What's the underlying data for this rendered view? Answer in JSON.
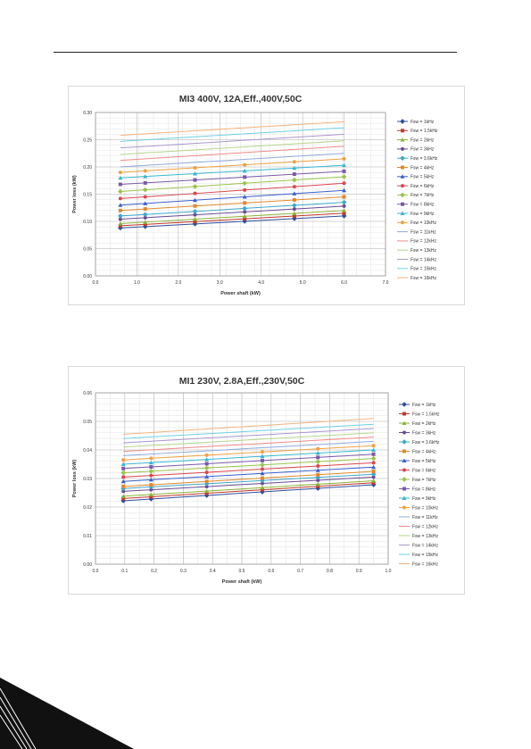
{
  "colors": {
    "series": [
      "#2f4f9f",
      "#c0392b",
      "#8db33a",
      "#6a4c93",
      "#3fa7c9",
      "#e08a2b",
      "#3a5fcd",
      "#d9464d",
      "#9ac34c",
      "#7a5aa8",
      "#38b7cf",
      "#f0a040",
      "#8faadc",
      "#f08a8a",
      "#b5d58a",
      "#a996cc",
      "#6fd0e6",
      "#f5b27a"
    ]
  },
  "chart_data": [
    {
      "type": "line",
      "title": "MI3 400V, 12A,Eff.,400V,50C",
      "xlabel": "Power shaft (kW)",
      "ylabel": "Power loss (kW)",
      "xlim": [
        0,
        7
      ],
      "ylim": [
        0,
        0.3
      ],
      "xticks": [
        "0.0",
        "1.0",
        "2.0",
        "3.0",
        "4.0",
        "5.0",
        "6.0",
        "7.0"
      ],
      "yticks": [
        "0.00",
        "0.05",
        "0.10",
        "0.15",
        "0.20",
        "0.25",
        "0.30"
      ],
      "grid": true,
      "legend": "right",
      "x": [
        0.6,
        1.2,
        2.4,
        3.6,
        4.8,
        6.0
      ],
      "series": [
        {
          "name": "Fsw = 1kHz",
          "start": 0.088,
          "end": 0.11
        },
        {
          "name": "Fsw = 1.5kHz",
          "start": 0.092,
          "end": 0.115
        },
        {
          "name": "Fsw = 2kHz",
          "start": 0.096,
          "end": 0.12
        },
        {
          "name": "Fsw = 3kHz",
          "start": 0.104,
          "end": 0.128
        },
        {
          "name": "Fsw = 3.6kHz",
          "start": 0.11,
          "end": 0.135
        },
        {
          "name": "Fsw = 4kHz",
          "start": 0.12,
          "end": 0.145
        },
        {
          "name": "Fsw = 5kHz",
          "start": 0.13,
          "end": 0.157
        },
        {
          "name": "Fsw = 6kHz",
          "start": 0.142,
          "end": 0.17
        },
        {
          "name": "Fsw = 7kHz",
          "start": 0.155,
          "end": 0.182
        },
        {
          "name": "Fsw = 8kHz",
          "start": 0.168,
          "end": 0.192
        },
        {
          "name": "Fsw = 9kHz",
          "start": 0.18,
          "end": 0.203
        },
        {
          "name": "Fsw = 10kHz",
          "start": 0.19,
          "end": 0.215
        },
        {
          "name": "Fsw = 11kHz",
          "start": 0.2,
          "end": 0.225
        },
        {
          "name": "Fsw = 12kHz",
          "start": 0.212,
          "end": 0.238
        },
        {
          "name": "Fsw = 13kHz",
          "start": 0.223,
          "end": 0.248
        },
        {
          "name": "Fsw = 14kHz",
          "start": 0.235,
          "end": 0.26
        },
        {
          "name": "Fsw = 15kHz",
          "start": 0.247,
          "end": 0.272
        },
        {
          "name": "Fsw = 16kHz",
          "start": 0.258,
          "end": 0.283
        }
      ]
    },
    {
      "type": "line",
      "title": "MI1 230V, 2.8A,Eff.,230V,50C",
      "xlabel": "Power shaft (kW)",
      "ylabel": "Power loss (kW)",
      "xlim": [
        0,
        1
      ],
      "ylim": [
        0,
        0.06
      ],
      "xticks": [
        "0.0",
        "0.1",
        "0.2",
        "0.3",
        "0.4",
        "0.5",
        "0.6",
        "0.7",
        "0.8",
        "0.9",
        "1.0"
      ],
      "yticks": [
        "0.00",
        "0.01",
        "0.02",
        "0.03",
        "0.04",
        "0.05",
        "0.06"
      ],
      "grid": true,
      "legend": "right",
      "x": [
        0.095,
        0.19,
        0.38,
        0.57,
        0.76,
        0.95
      ],
      "series": [
        {
          "name": "Fsw = 1kHz",
          "start": 0.0222,
          "end": 0.0278
        },
        {
          "name": "Fsw = 1.5kHz",
          "start": 0.023,
          "end": 0.0285
        },
        {
          "name": "Fsw = 2kHz",
          "start": 0.0238,
          "end": 0.0292
        },
        {
          "name": "Fsw = 3kHz",
          "start": 0.0255,
          "end": 0.0305
        },
        {
          "name": "Fsw = 3.6kHz",
          "start": 0.0265,
          "end": 0.0315
        },
        {
          "name": "Fsw = 4kHz",
          "start": 0.0272,
          "end": 0.0325
        },
        {
          "name": "Fsw = 5kHz",
          "start": 0.029,
          "end": 0.034
        },
        {
          "name": "Fsw = 6kHz",
          "start": 0.0305,
          "end": 0.0355
        },
        {
          "name": "Fsw = 7kHz",
          "start": 0.032,
          "end": 0.037
        },
        {
          "name": "Fsw = 8kHz",
          "start": 0.0335,
          "end": 0.0385
        },
        {
          "name": "Fsw = 9kHz",
          "start": 0.035,
          "end": 0.04
        },
        {
          "name": "Fsw = 10kHz",
          "start": 0.0365,
          "end": 0.0415
        },
        {
          "name": "Fsw = 11kHz",
          "start": 0.038,
          "end": 0.043
        },
        {
          "name": "Fsw = 12kHz",
          "start": 0.0395,
          "end": 0.0445
        },
        {
          "name": "Fsw = 13kHz",
          "start": 0.041,
          "end": 0.046
        },
        {
          "name": "Fsw = 14kHz",
          "start": 0.0425,
          "end": 0.0475
        },
        {
          "name": "Fsw = 15kHz",
          "start": 0.044,
          "end": 0.049
        },
        {
          "name": "Fsw = 16kHz",
          "start": 0.0455,
          "end": 0.051
        }
      ]
    }
  ]
}
